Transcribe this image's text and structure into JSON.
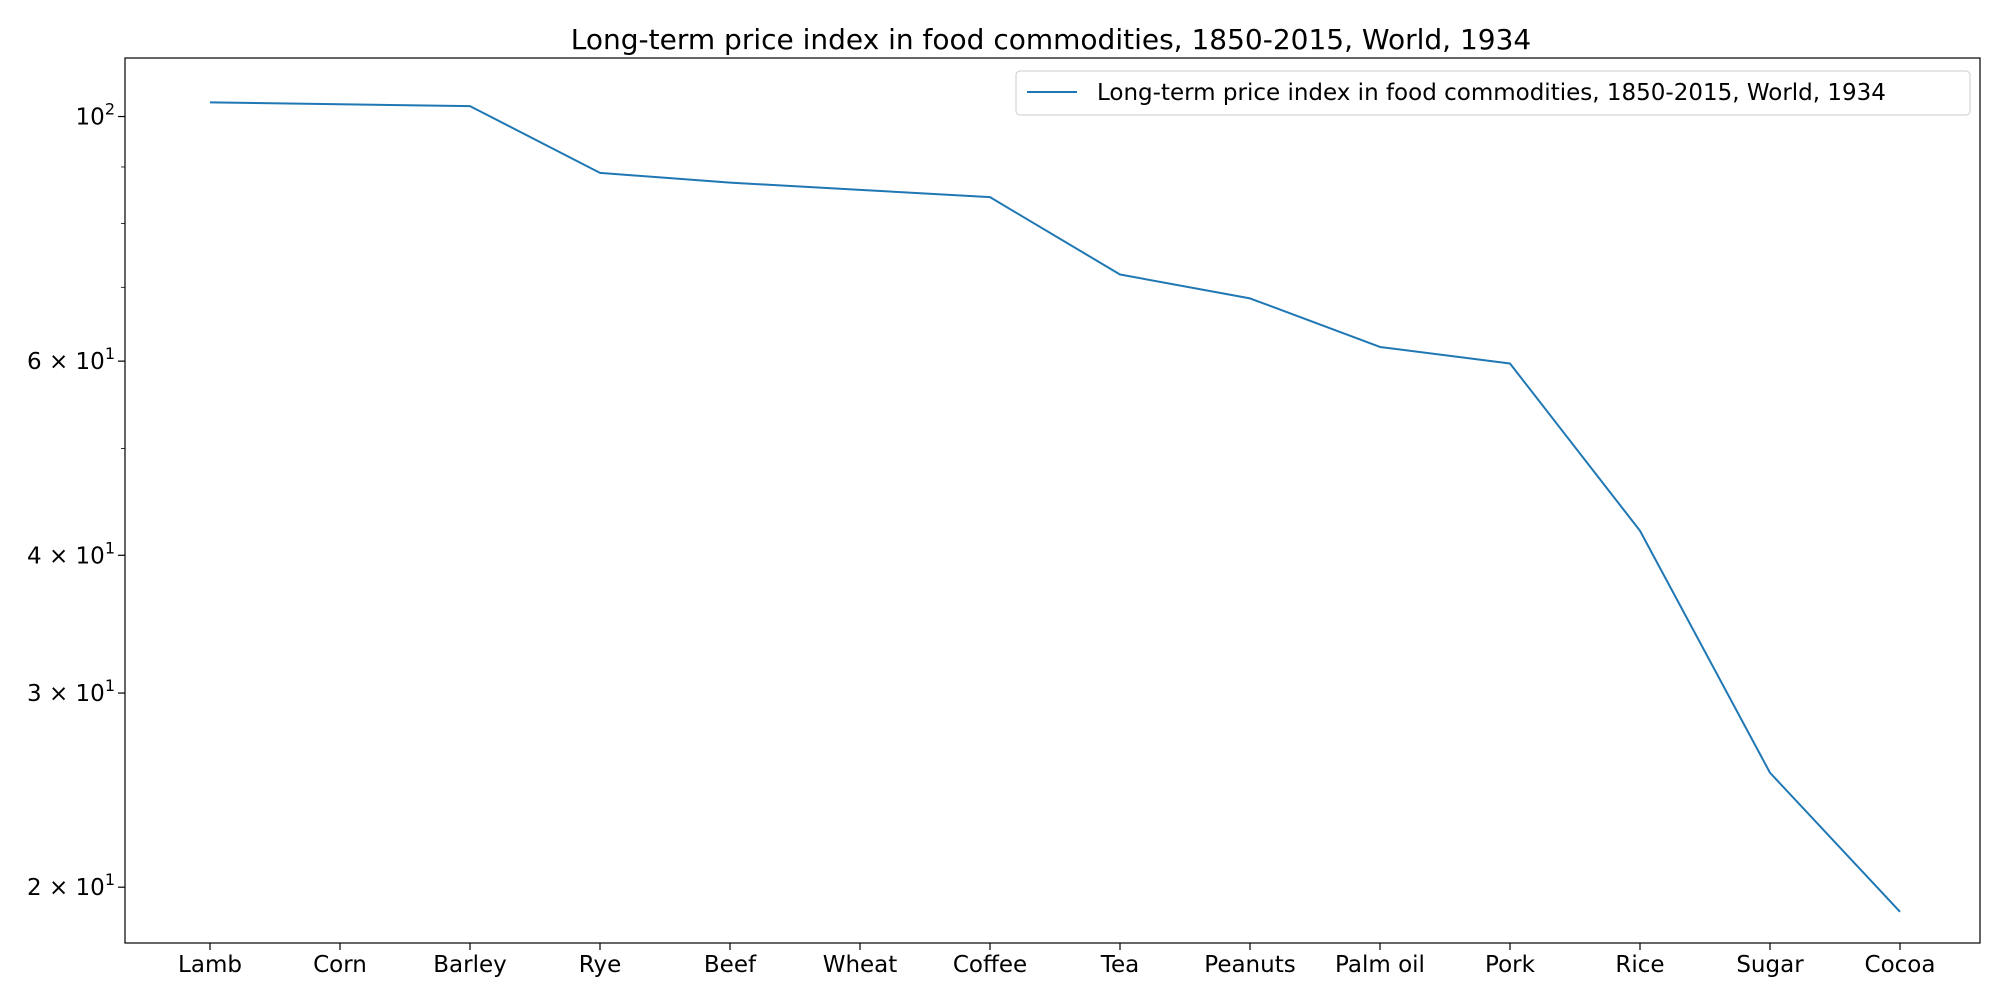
{
  "chart_data": {
    "type": "line",
    "title": "Long-term price index in food commodities, 1850-2015, World, 1934",
    "xlabel": "",
    "ylabel": "",
    "yscale": "log",
    "ylim": [
      17.8,
      113
    ],
    "categories": [
      "Lamb",
      "Corn",
      "Barley",
      "Rye",
      "Beef",
      "Wheat",
      "Coffee",
      "Tea",
      "Peanuts",
      "Palm oil",
      "Pork",
      "Rice",
      "Sugar",
      "Cocoa"
    ],
    "y_ticks": [
      {
        "value": 100,
        "base": "10",
        "exp": "2"
      },
      {
        "value": 60,
        "base": "6 × 10",
        "exp": "1"
      },
      {
        "value": 40,
        "base": "4 × 10",
        "exp": "1"
      },
      {
        "value": 30,
        "base": "3 × 10",
        "exp": "1"
      },
      {
        "value": 20,
        "base": "2 × 10",
        "exp": "1"
      }
    ],
    "y_minor_ticks": [
      50,
      70,
      80,
      90
    ],
    "grid": false,
    "legend_position": "top-right",
    "series": [
      {
        "name": "Long-term price index in food commodities, 1850-2015, World, 1934",
        "color": "#1f77b4",
        "values": [
          103.0,
          102.6,
          102.2,
          88.9,
          87.1,
          85.8,
          84.5,
          71.9,
          68.4,
          61.8,
          59.7,
          42.1,
          25.4,
          19.0
        ]
      }
    ]
  }
}
